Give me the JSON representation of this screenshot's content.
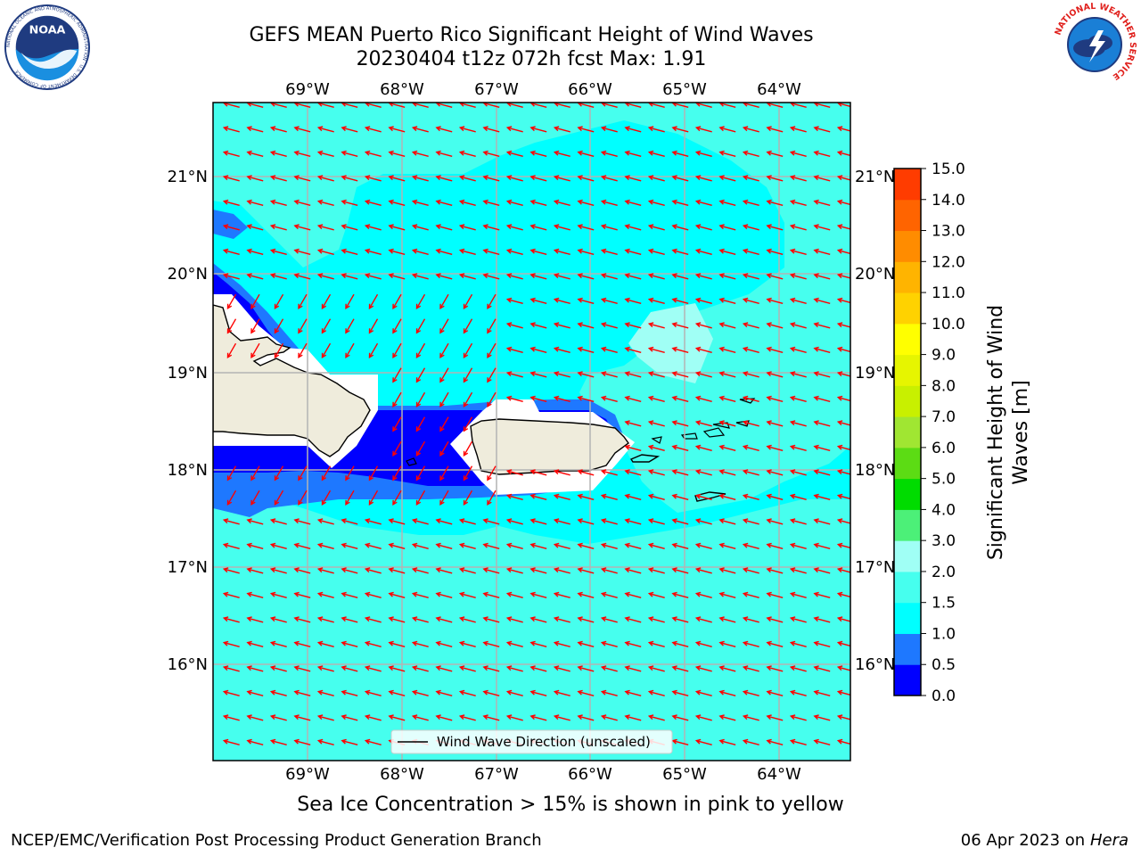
{
  "title": {
    "line1": "GEFS MEAN Puerto Rico Significant Height of Wind Waves",
    "line2": "20230404 t12z 072h fcst   Max: 1.91"
  },
  "map": {
    "lon_labels": [
      "69°W",
      "68°W",
      "67°W",
      "66°W",
      "65°W",
      "64°W"
    ],
    "lat_labels": [
      "21°N",
      "20°N",
      "19°N",
      "18°N",
      "17°N",
      "16°N"
    ],
    "legend_label": "Wind Wave Direction (unscaled)",
    "arrow_color": "#ff0000",
    "land_color": "#efecdc"
  },
  "colorbar": {
    "label_line1": "Significant Height of Wind",
    "label_line2": "Waves [m]",
    "ticks": [
      "0.0",
      "0.5",
      "1.0",
      "1.5",
      "2.0",
      "3.0",
      "4.0",
      "5.0",
      "6.0",
      "7.0",
      "8.0",
      "9.0",
      "10.0",
      "11.0",
      "12.0",
      "13.0",
      "14.0",
      "15.0"
    ],
    "colors": [
      "#0000ff",
      "#1e78ff",
      "#00ffff",
      "#46ffee",
      "#a0fff5",
      "#4cf078",
      "#00dc00",
      "#5cdc14",
      "#a0e632",
      "#c8f000",
      "#e6f500",
      "#ffff00",
      "#ffd200",
      "#ffb400",
      "#ff8c00",
      "#ff6400",
      "#ff3c00",
      "#ff0000"
    ]
  },
  "logos": {
    "noaa_text": "NOAA",
    "noaa_ring": "NATIONAL OCEANIC AND ATMOSPHERIC ADMINISTRATION · U.S. DEPARTMENT OF COMMERCE",
    "nws_ring": "NATIONAL WEATHER SERVICE"
  },
  "note": "Sea Ice Concentration > 15% is shown in pink to yellow",
  "footer": {
    "left": "NCEP/EMC/Verification Post Processing Product Generation Branch",
    "date": "06 Apr 2023 on ",
    "host": "Hera"
  }
}
